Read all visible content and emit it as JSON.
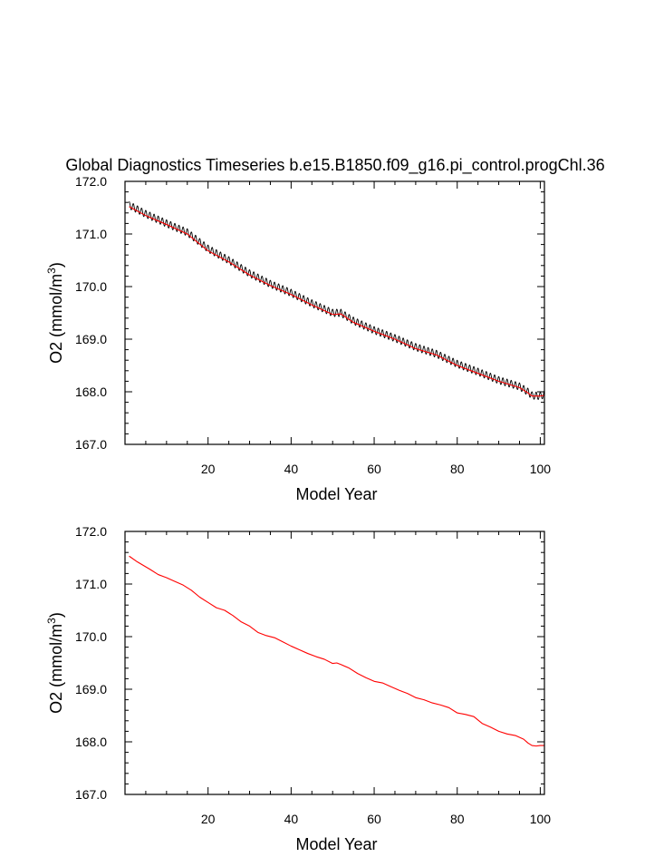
{
  "title": "Global Diagnostics Timeseries b.e15.B1850.f09_g16.pi_control.progChl.36",
  "colors": {
    "monthly": "#000000",
    "annual": "#ff0000",
    "axis": "#000000"
  },
  "chart_data": [
    {
      "type": "line",
      "xlabel": "Model Year",
      "ylabel": "O2 (mmol/m3)",
      "ylabel_parts": {
        "main": "O2 (mmol/m",
        "sup": "3",
        "close": ")"
      },
      "xlim": [
        0,
        101
      ],
      "ylim": [
        167.0,
        172.0
      ],
      "x_ticks": [
        20,
        40,
        60,
        80,
        100
      ],
      "y_ticks": [
        "167.0",
        "168.0",
        "169.0",
        "170.0",
        "171.0",
        "172.0"
      ],
      "seasonal_amplitude": 0.07,
      "series": [
        {
          "kind": "monthly",
          "color": "#000000",
          "x": [
            1,
            5,
            10,
            15,
            20,
            25,
            30,
            35,
            40,
            45,
            50,
            52,
            55,
            60,
            65,
            70,
            75,
            80,
            85,
            90,
            95,
            97,
            98,
            100,
            101
          ],
          "y": [
            171.55,
            171.38,
            171.2,
            171.03,
            170.72,
            170.5,
            170.25,
            170.05,
            169.88,
            169.68,
            169.5,
            169.5,
            169.35,
            169.17,
            169.02,
            168.85,
            168.72,
            168.53,
            168.38,
            168.22,
            168.1,
            168.0,
            167.93,
            167.92,
            167.95
          ]
        },
        {
          "kind": "annual",
          "color": "#ff0000",
          "x": [
            1,
            5,
            10,
            15,
            20,
            25,
            30,
            35,
            40,
            45,
            50,
            52,
            55,
            60,
            65,
            70,
            75,
            80,
            85,
            90,
            95,
            97,
            98,
            100,
            101
          ],
          "y": [
            171.52,
            171.35,
            171.18,
            171.0,
            170.68,
            170.47,
            170.22,
            170.02,
            169.85,
            169.65,
            169.47,
            169.48,
            169.32,
            169.15,
            169.0,
            168.82,
            168.7,
            168.5,
            168.35,
            168.2,
            168.08,
            167.98,
            167.92,
            167.92,
            167.93
          ]
        }
      ]
    },
    {
      "type": "line",
      "xlabel": "Model Year",
      "ylabel": "O2 (mmol/m3)",
      "ylabel_parts": {
        "main": "O2 (mmol/m",
        "sup": "3",
        "close": ")"
      },
      "xlim": [
        0,
        101
      ],
      "ylim": [
        167.0,
        172.0
      ],
      "x_ticks": [
        20,
        40,
        60,
        80,
        100
      ],
      "y_ticks": [
        "167.0",
        "168.0",
        "169.0",
        "170.0",
        "171.0",
        "172.0"
      ],
      "series": [
        {
          "kind": "annual",
          "color": "#ff0000",
          "x": [
            1,
            3,
            6,
            8,
            10,
            12,
            14,
            16,
            18,
            20,
            22,
            24,
            26,
            28,
            30,
            32,
            34,
            36,
            38,
            40,
            42,
            44,
            46,
            48,
            50,
            51,
            52,
            54,
            56,
            58,
            60,
            62,
            64,
            66,
            68,
            70,
            72,
            74,
            76,
            78,
            80,
            82,
            84,
            86,
            88,
            90,
            92,
            94,
            96,
            97,
            98,
            99,
            100,
            101
          ],
          "y": [
            171.53,
            171.42,
            171.28,
            171.18,
            171.12,
            171.05,
            170.98,
            170.88,
            170.75,
            170.65,
            170.55,
            170.5,
            170.4,
            170.28,
            170.2,
            170.08,
            170.02,
            169.98,
            169.9,
            169.82,
            169.75,
            169.68,
            169.62,
            169.57,
            169.49,
            169.5,
            169.47,
            169.4,
            169.3,
            169.22,
            169.15,
            169.12,
            169.05,
            168.98,
            168.92,
            168.84,
            168.8,
            168.74,
            168.7,
            168.65,
            168.55,
            168.52,
            168.48,
            168.35,
            168.28,
            168.2,
            168.15,
            168.12,
            168.05,
            167.98,
            167.93,
            167.92,
            167.93,
            167.93
          ]
        }
      ]
    }
  ]
}
